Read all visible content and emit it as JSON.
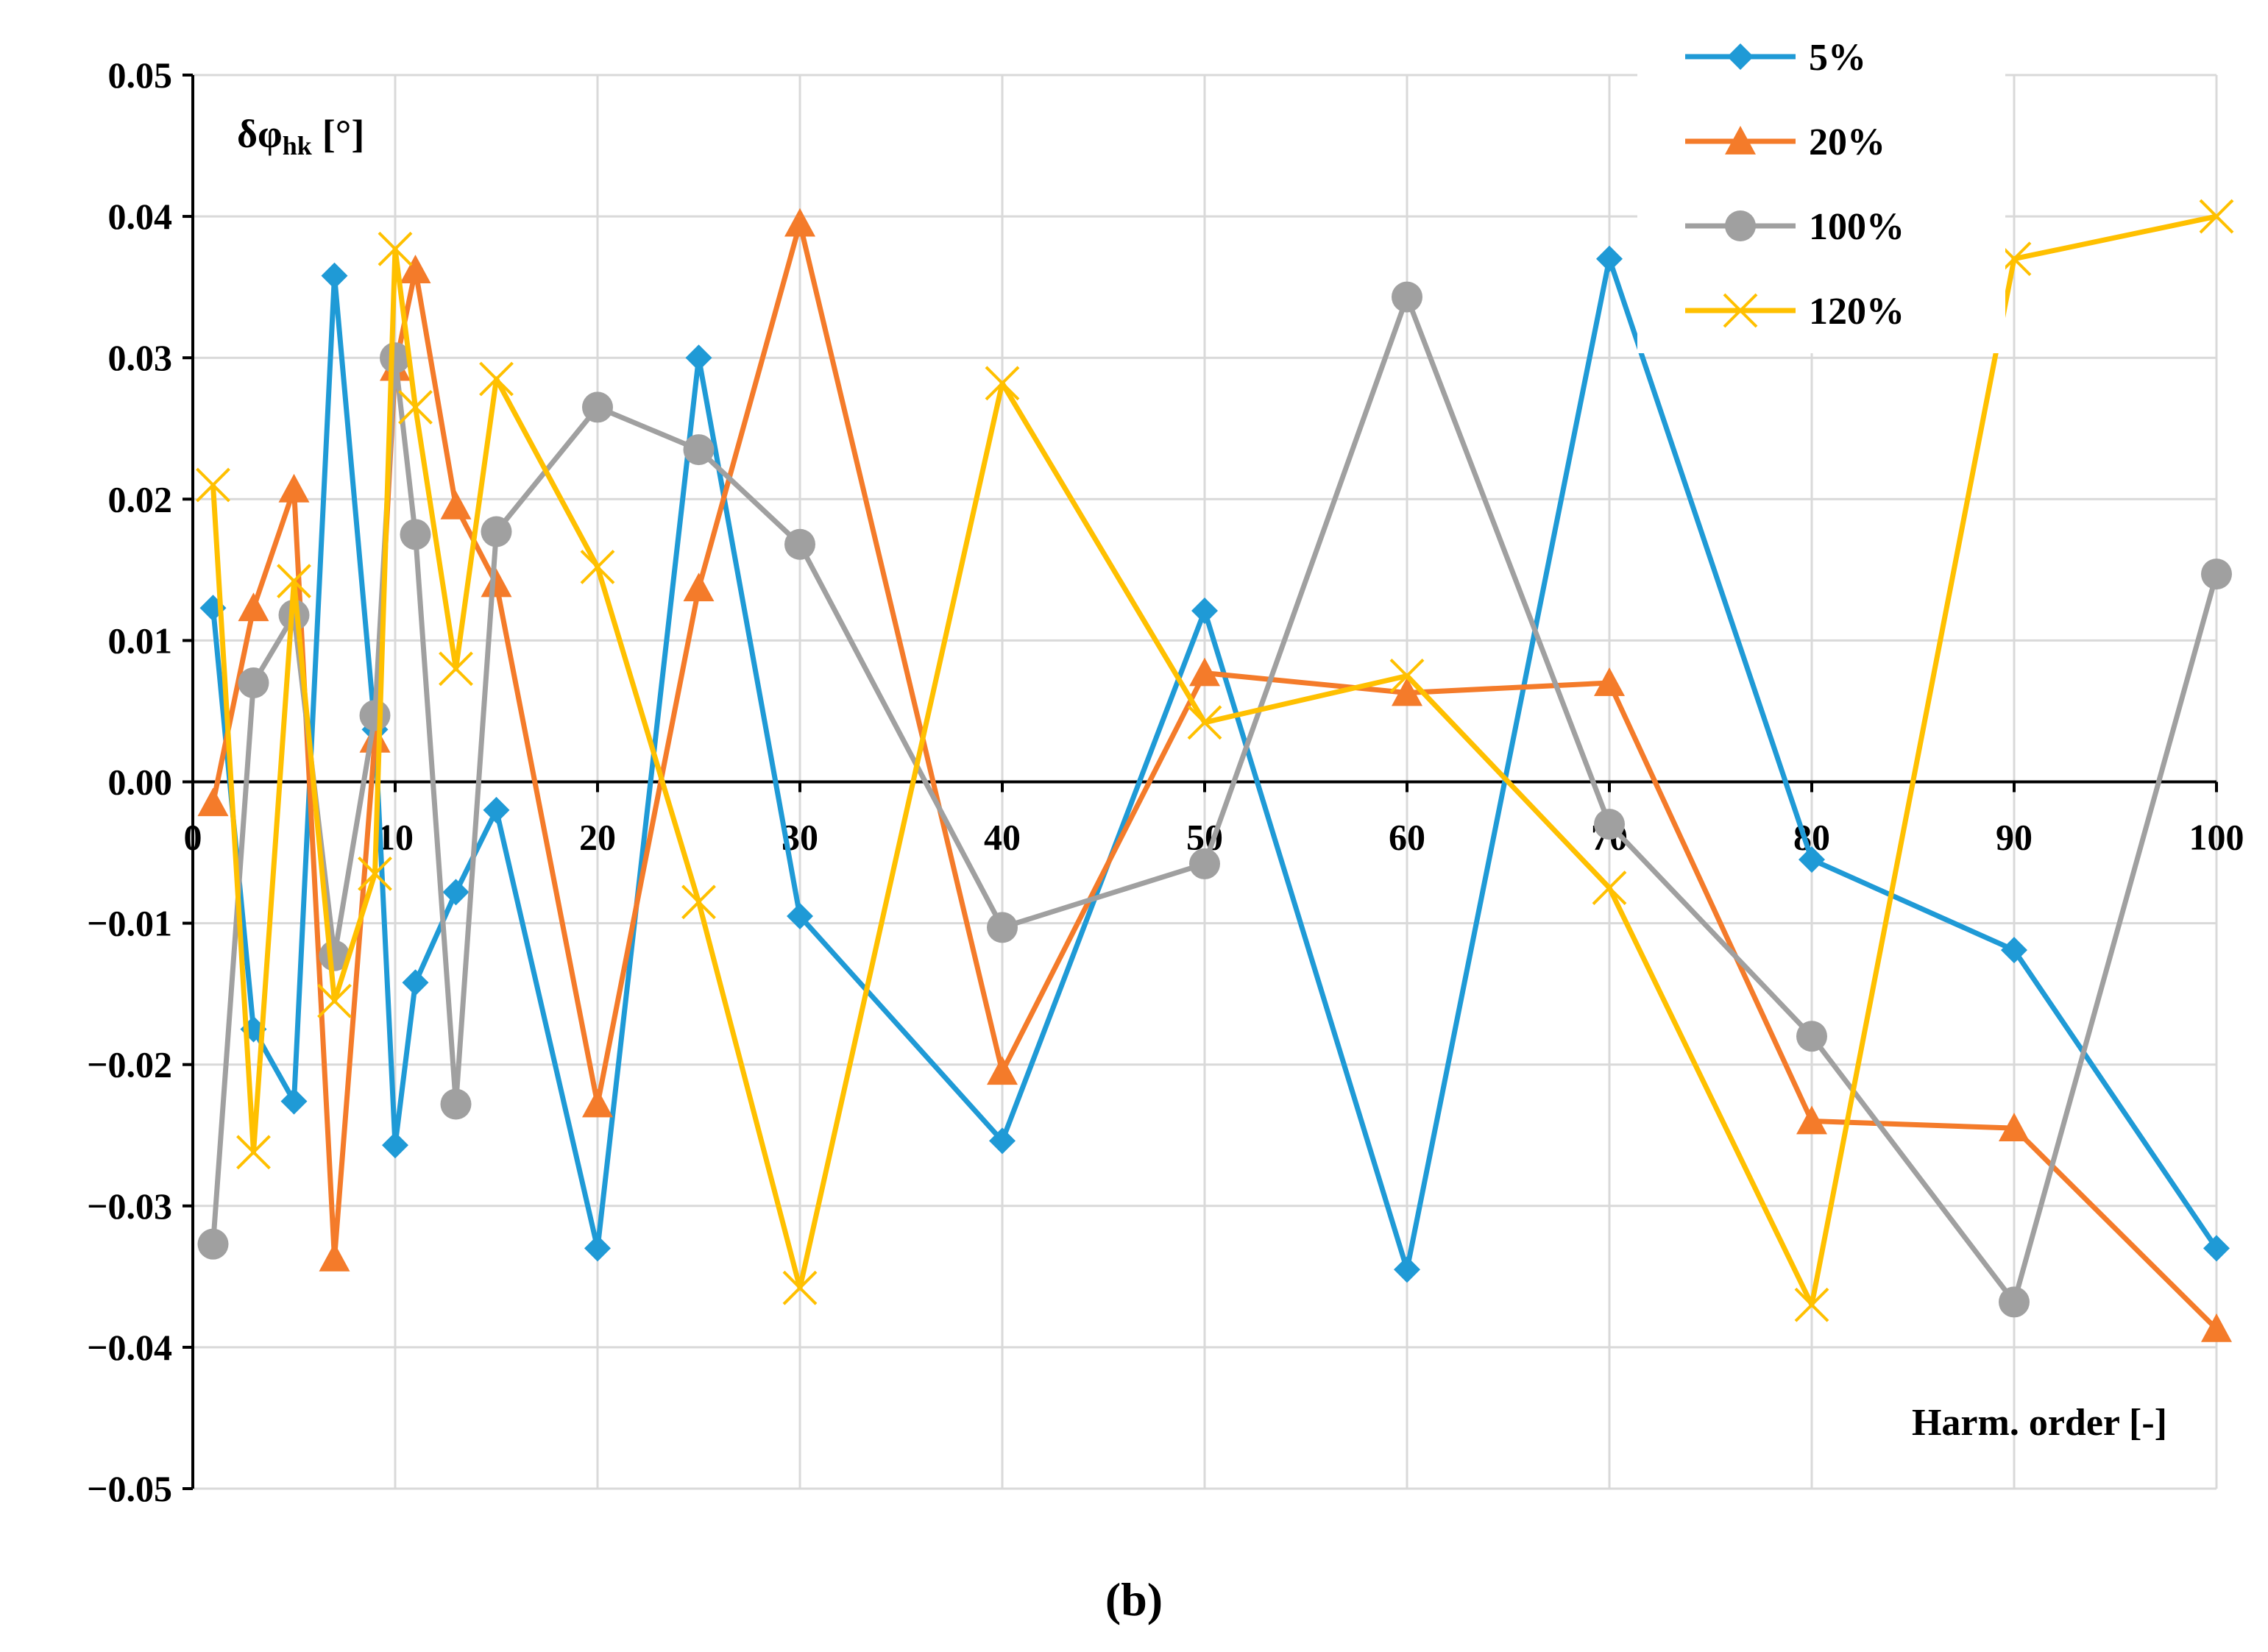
{
  "chart_data": {
    "type": "line",
    "title": "",
    "xlabel": "Harm. order [-]",
    "ylabel_main": "δφ",
    "ylabel_sub": "hk",
    "ylabel_unit": "[°]",
    "xlim": [
      0,
      100
    ],
    "ylim": [
      -0.05,
      0.05
    ],
    "x_ticks": [
      0,
      10,
      20,
      30,
      40,
      50,
      60,
      70,
      80,
      90,
      100
    ],
    "y_ticks": [
      0.05,
      0.04,
      0.03,
      0.02,
      0.01,
      0.0,
      -0.01,
      -0.02,
      -0.03,
      -0.04,
      -0.05
    ],
    "x_tick_labels": [
      "0",
      "10",
      "20",
      "30",
      "40",
      "50",
      "60",
      "70",
      "80",
      "90",
      "100"
    ],
    "y_tick_labels": [
      "0.05",
      "0.04",
      "0.03",
      "0.02",
      "0.01",
      "0.00",
      "−0.01",
      "−0.02",
      "−0.03",
      "−0.04",
      "−0.05"
    ],
    "grid": true,
    "legend_position": "top-right",
    "x": [
      1,
      3,
      5,
      7,
      9,
      10,
      11,
      13,
      15,
      20,
      25,
      30,
      40,
      50,
      60,
      70,
      80,
      90,
      100
    ],
    "series": [
      {
        "name": "5%",
        "color": "#1f9ad6",
        "marker": "diamond",
        "values": [
          0.0123,
          -0.0175,
          -0.0226,
          0.0358,
          0.0037,
          -0.0257,
          -0.0142,
          -0.0078,
          -0.002,
          -0.033,
          0.03,
          -0.0095,
          -0.0254,
          0.0121,
          -0.0345,
          0.037,
          -0.0055,
          -0.0119,
          -0.033
        ]
      },
      {
        "name": "20%",
        "color": "#f47b2a",
        "marker": "triangle",
        "values": [
          -0.0015,
          0.0123,
          0.0207,
          -0.0337,
          0.003,
          0.0293,
          0.0362,
          0.0195,
          0.014,
          -0.0228,
          0.0137,
          0.0395,
          -0.0205,
          0.0077,
          0.0063,
          0.007,
          -0.024,
          -0.0245,
          -0.0387
        ]
      },
      {
        "name": "100%",
        "color": "#a0a0a0",
        "marker": "circle",
        "values": [
          -0.0327,
          0.007,
          0.0118,
          -0.0123,
          0.0047,
          0.03,
          0.0175,
          -0.0228,
          0.0177,
          0.0265,
          0.0235,
          0.0168,
          -0.0103,
          -0.0058,
          0.0343,
          -0.003,
          -0.018,
          -0.0368,
          0.0147
        ]
      },
      {
        "name": "120%",
        "color": "#ffc000",
        "marker": "x",
        "values": [
          0.021,
          -0.0262,
          0.0142,
          -0.0155,
          -0.0065,
          0.0377,
          0.0265,
          0.008,
          0.0285,
          0.0152,
          -0.0085,
          -0.0358,
          0.0282,
          0.0042,
          0.0075,
          -0.0075,
          -0.037,
          0.037,
          0.04
        ]
      }
    ]
  },
  "caption": "(b)"
}
